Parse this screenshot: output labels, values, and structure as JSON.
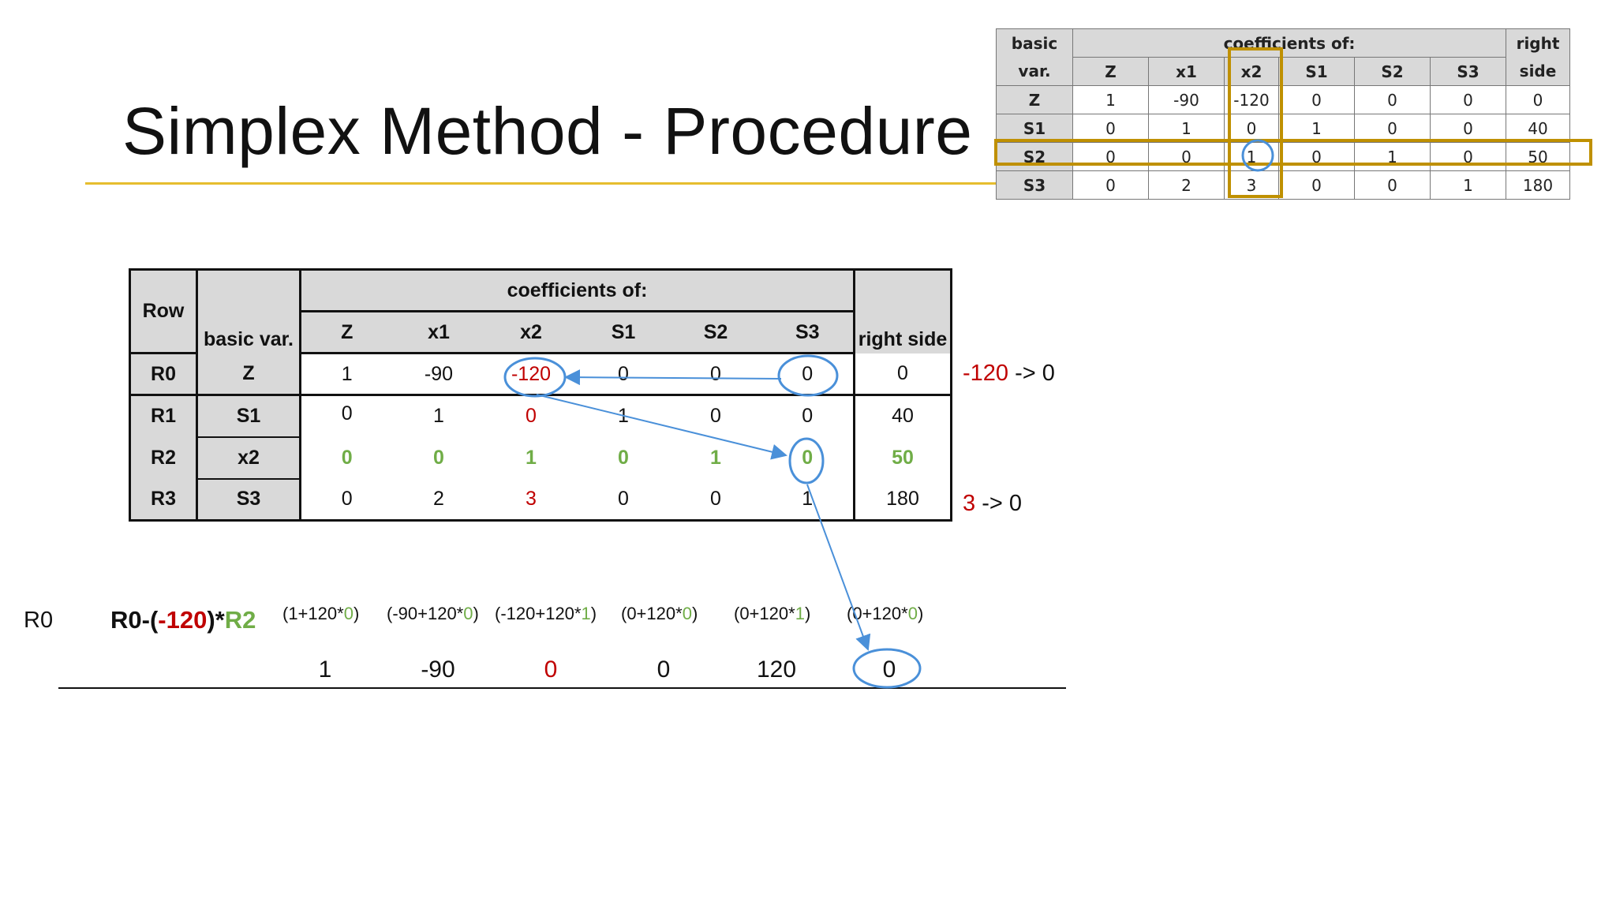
{
  "slide": {
    "title": "Simplex Method - Procedure"
  },
  "mini_table": {
    "headers": {
      "basic": "basic",
      "var": "var.",
      "coefficients": "coefficients of:",
      "right": "right",
      "side": "side"
    },
    "columns": [
      "Z",
      "x1",
      "x2",
      "S1",
      "S2",
      "S3"
    ],
    "rows": [
      {
        "label": "Z",
        "values": [
          "1",
          "-90",
          "-120",
          "0",
          "0",
          "0"
        ],
        "rhs": "0"
      },
      {
        "label": "S1",
        "values": [
          "0",
          "1",
          "0",
          "1",
          "0",
          "0"
        ],
        "rhs": "40"
      },
      {
        "label": "S2",
        "values": [
          "0",
          "0",
          "1",
          "0",
          "1",
          "0"
        ],
        "rhs": "50"
      },
      {
        "label": "S3",
        "values": [
          "0",
          "2",
          "3",
          "0",
          "0",
          "1"
        ],
        "rhs": "180"
      }
    ],
    "highlight_color": "#bf9000",
    "circle_color": "#4a90d9"
  },
  "main_table": {
    "headers": {
      "row": "Row",
      "basic_var": "basic var.",
      "coefficients": "coefficients of:",
      "right_side": "right side"
    },
    "columns": [
      "Z",
      "x1",
      "x2",
      "S1",
      "S2",
      "S3"
    ],
    "rows": [
      {
        "row": "R0",
        "basic": "Z",
        "values": [
          "1",
          "-90",
          "-120",
          "0",
          "0",
          "0"
        ],
        "rhs": "0"
      },
      {
        "row": "R1",
        "basic": "S1",
        "values": [
          "0",
          "1",
          "0",
          "1",
          "0",
          "0"
        ],
        "rhs": "40"
      },
      {
        "row": "R2",
        "basic": "x2",
        "values": [
          "0",
          "0",
          "1",
          "0",
          "1",
          "0"
        ],
        "rhs": "50"
      },
      {
        "row": "R3",
        "basic": "S3",
        "values": [
          "0",
          "2",
          "3",
          "0",
          "0",
          "1"
        ],
        "rhs": "180"
      }
    ]
  },
  "notes": {
    "r0_from": "-120",
    "r0_arrow": "-> 0",
    "r3_from": "3",
    "r3_arrow": "-> 0"
  },
  "operation": {
    "row_label": "R0",
    "formula": {
      "p1": "R0-(",
      "coef": "-120",
      "p2": ")*",
      "row": "R2"
    },
    "terms": [
      {
        "pre": "(1+120*",
        "g": "0",
        "post": ")"
      },
      {
        "pre": "(-90+120*",
        "g": "0",
        "post": ")"
      },
      {
        "pre": "(-120+120*",
        "g": "1",
        "post": ")"
      },
      {
        "pre": "(0+120*",
        "g": "0",
        "post": ")"
      },
      {
        "pre": "(0+120*",
        "g": "1",
        "post": ")"
      },
      {
        "pre": "(0+120*",
        "g": "0",
        "post": ")"
      }
    ],
    "results": [
      "1",
      "-90",
      "0",
      "0",
      "120",
      "0"
    ]
  },
  "colors": {
    "accent_rule": "#e6bd2e",
    "red": "#c00000",
    "green": "#70ad47",
    "arrow_blue": "#4a90d9"
  }
}
